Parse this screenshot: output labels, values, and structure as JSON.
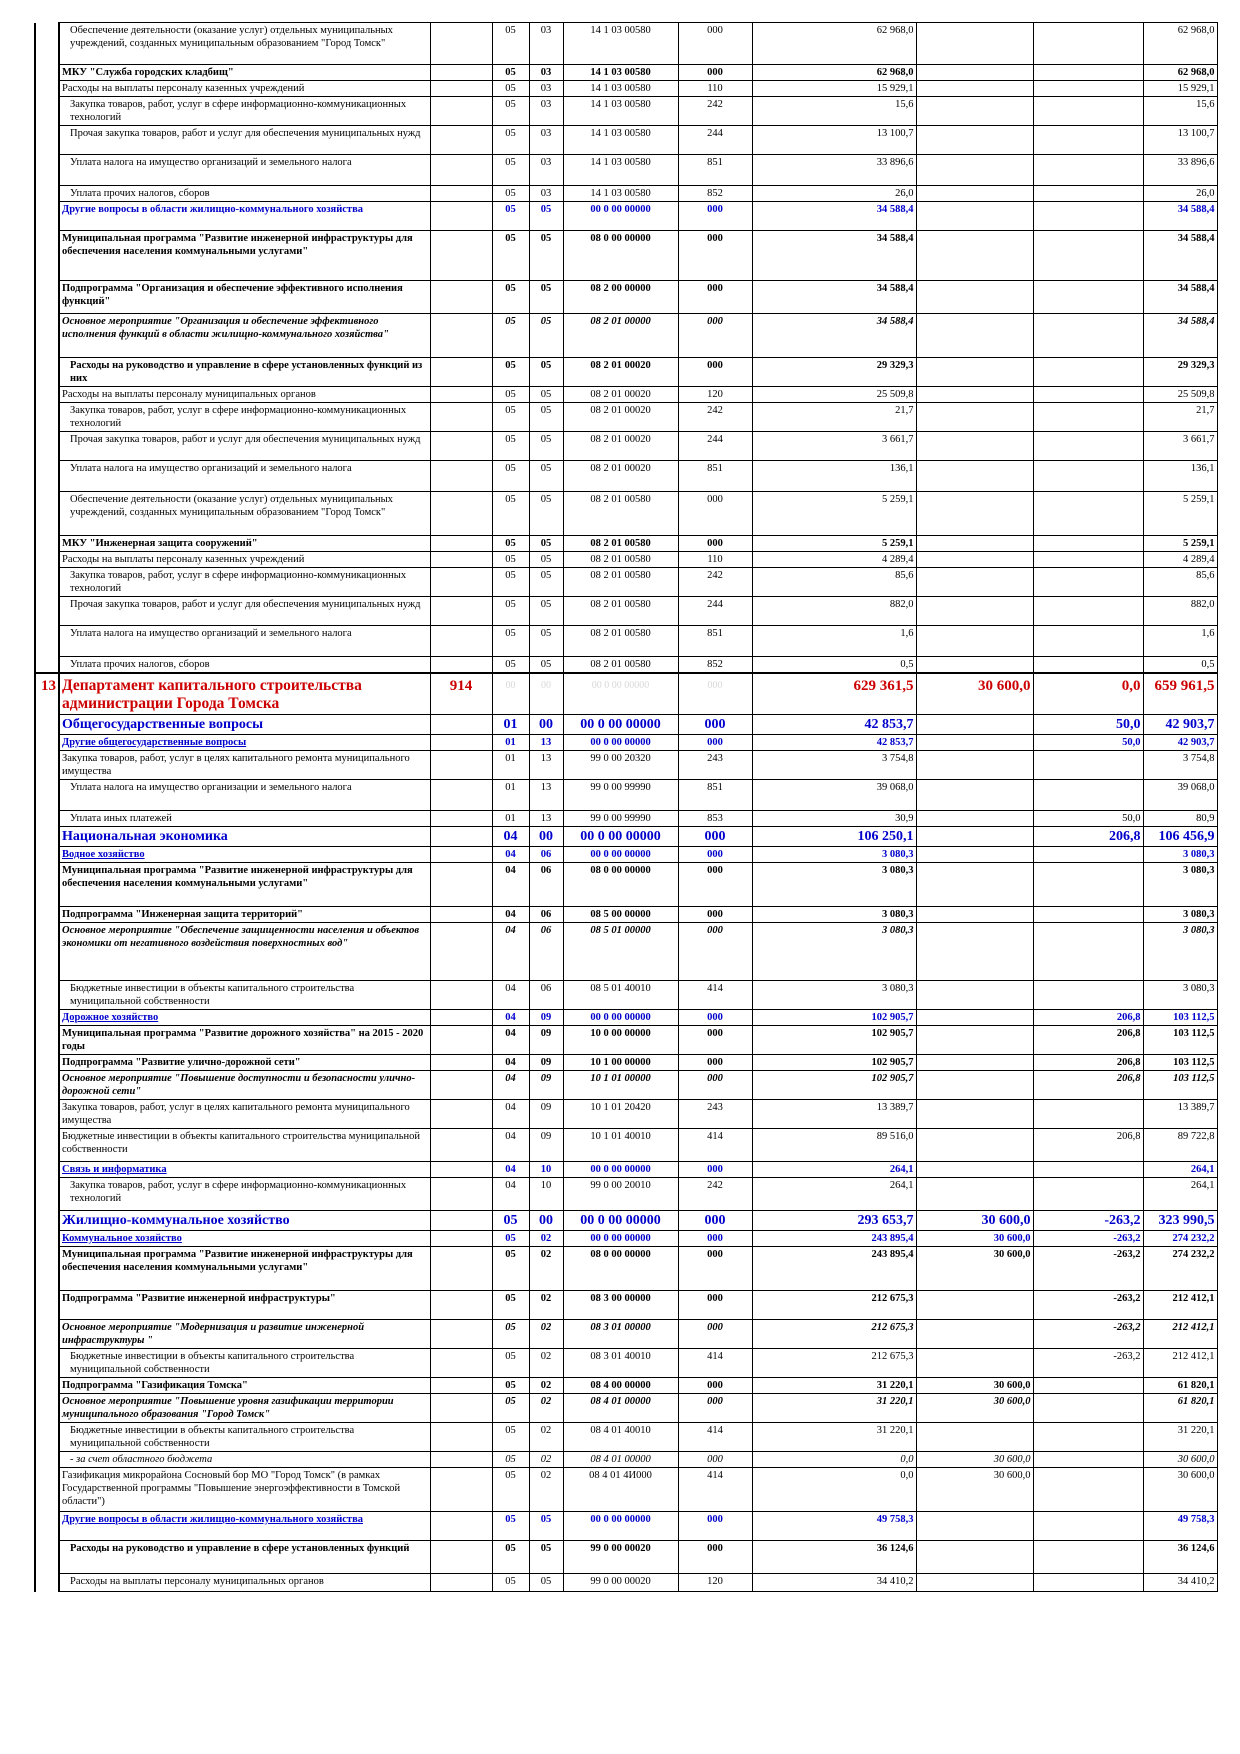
{
  "rows": [
    {
      "name": "Обеспечение деятельности (оказание услуг) отдельных муниципальных учреждений, созданных муниципальным образованием \"Город Томск\"",
      "rz": "05",
      "pr": "03",
      "csr": "14 1 03 00580",
      "vr": "000",
      "s1": "62 968,0",
      "s2": "",
      "s3": "",
      "s4": "62 968,0",
      "h": 42,
      "cls": "",
      "ind": 1
    },
    {
      "name": "МКУ \"Служба городских кладбищ\"",
      "rz": "05",
      "pr": "03",
      "csr": "14 1 03 00580",
      "vr": "000",
      "s1": "62 968,0",
      "s2": "",
      "s3": "",
      "s4": "62 968,0",
      "h": 15,
      "cls": "b",
      "ind": 0
    },
    {
      "name": "Расходы на выплаты персоналу казенных учреждений",
      "rz": "05",
      "pr": "03",
      "csr": "14 1 03 00580",
      "vr": "110",
      "s1": "15 929,1",
      "s2": "",
      "s3": "",
      "s4": "15 929,1",
      "h": 15,
      "cls": "",
      "ind": 0
    },
    {
      "name": "Закупка товаров, работ, услуг в сфере информационно-коммуникационных технологий",
      "rz": "05",
      "pr": "03",
      "csr": "14 1 03 00580",
      "vr": "242",
      "s1": "15,6",
      "s2": "",
      "s3": "",
      "s4": "15,6",
      "h": 29,
      "cls": "",
      "ind": 1
    },
    {
      "name": "Прочая закупка товаров, работ и услуг для обеспечения муниципальных нужд",
      "rz": "05",
      "pr": "03",
      "csr": "14 1 03 00580",
      "vr": "244",
      "s1": "13 100,7",
      "s2": "",
      "s3": "",
      "s4": "13 100,7",
      "h": 29,
      "cls": "",
      "ind": 1
    },
    {
      "name": "Уплата налога на имущество организаций и земельного налога",
      "rz": "05",
      "pr": "03",
      "csr": "14 1 03 00580",
      "vr": "851",
      "s1": "33 896,6",
      "s2": "",
      "s3": "",
      "s4": "33 896,6",
      "h": 31,
      "cls": "",
      "ind": 1
    },
    {
      "name": "Уплата прочих налогов, сборов",
      "rz": "05",
      "pr": "03",
      "csr": "14 1 03 00580",
      "vr": "852",
      "s1": "26,0",
      "s2": "",
      "s3": "",
      "s4": "26,0",
      "h": 15,
      "cls": "",
      "ind": 1
    },
    {
      "name": "Другие вопросы в области жилищно-коммунального хозяйства",
      "rz": "05",
      "pr": "05",
      "csr": "00 0 00 00000",
      "vr": "000",
      "s1": "34 588,4",
      "s2": "",
      "s3": "",
      "s4": "34 588,4",
      "h": 29,
      "cls": "blue",
      "ind": 0
    },
    {
      "name": "Муниципальная программа \"Развитие инженерной инфраструктуры для обеспечения населения коммунальными услугами\"",
      "rz": "05",
      "pr": "05",
      "csr": "08 0 00 00000",
      "vr": "000",
      "s1": "34 588,4",
      "s2": "",
      "s3": "",
      "s4": "34 588,4",
      "h": 50,
      "cls": "b",
      "ind": 0
    },
    {
      "name": "Подпрограмма \"Организация и обеспечение эффективного исполнения функций\"",
      "rz": "05",
      "pr": "05",
      "csr": "08 2 00 00000",
      "vr": "000",
      "s1": "34 588,4",
      "s2": "",
      "s3": "",
      "s4": "34 588,4",
      "h": 33,
      "cls": "b",
      "ind": 0
    },
    {
      "name": "Основное мероприятие \"Организация и обеспечение эффективного исполнения функций в области жилищно-коммунального хозяйства\"",
      "rz": "05",
      "pr": "05",
      "csr": "08 2 01 00000",
      "vr": "000",
      "s1": "34 588,4",
      "s2": "",
      "s3": "",
      "s4": "34 588,4",
      "h": 44,
      "cls": "bi",
      "ind": 0
    },
    {
      "name": "Расходы на руководство и управление в сфере установленных функций из них",
      "rz": "05",
      "pr": "05",
      "csr": "08 2 01 00020",
      "vr": "000",
      "s1": "29 329,3",
      "s2": "",
      "s3": "",
      "s4": "29 329,3",
      "h": 29,
      "cls": "b",
      "ind": 1
    },
    {
      "name": "Расходы на выплаты персоналу муниципальных органов",
      "rz": "05",
      "pr": "05",
      "csr": "08 2 01 00020",
      "vr": "120",
      "s1": "25 509,8",
      "s2": "",
      "s3": "",
      "s4": "25 509,8",
      "h": 15,
      "cls": "",
      "ind": 0
    },
    {
      "name": "Закупка товаров, работ, услуг в сфере информационно-коммуникационных технологий",
      "rz": "05",
      "pr": "05",
      "csr": "08 2 01 00020",
      "vr": "242",
      "s1": "21,7",
      "s2": "",
      "s3": "",
      "s4": "21,7",
      "h": 29,
      "cls": "",
      "ind": 1
    },
    {
      "name": "Прочая закупка товаров, работ и услуг для обеспечения муниципальных нужд",
      "rz": "05",
      "pr": "05",
      "csr": "08 2 01 00020",
      "vr": "244",
      "s1": "3 661,7",
      "s2": "",
      "s3": "",
      "s4": "3 661,7",
      "h": 29,
      "cls": "",
      "ind": 1
    },
    {
      "name": "Уплата налога на имущество организаций и земельного налога",
      "rz": "05",
      "pr": "05",
      "csr": "08 2 01 00020",
      "vr": "851",
      "s1": "136,1",
      "s2": "",
      "s3": "",
      "s4": "136,1",
      "h": 31,
      "cls": "",
      "ind": 1
    },
    {
      "name": "Обеспечение деятельности (оказание услуг) отдельных муниципальных учреждений, созданных муниципальным образованием \"Город Томск\"",
      "rz": "05",
      "pr": "05",
      "csr": "08 2 01 00580",
      "vr": "000",
      "s1": "5 259,1",
      "s2": "",
      "s3": "",
      "s4": "5 259,1",
      "h": 44,
      "cls": "",
      "ind": 1
    },
    {
      "name": "МКУ \"Инженерная защита сооружений\"",
      "rz": "05",
      "pr": "05",
      "csr": "08 2 01 00580",
      "vr": "000",
      "s1": "5 259,1",
      "s2": "",
      "s3": "",
      "s4": "5 259,1",
      "h": 15,
      "cls": "b",
      "ind": 0
    },
    {
      "name": "Расходы на выплаты персоналу казенных учреждений",
      "rz": "05",
      "pr": "05",
      "csr": "08 2 01 00580",
      "vr": "110",
      "s1": "4 289,4",
      "s2": "",
      "s3": "",
      "s4": "4 289,4",
      "h": 15,
      "cls": "",
      "ind": 0
    },
    {
      "name": "Закупка товаров, работ, услуг в сфере информационно-коммуникационных технологий",
      "rz": "05",
      "pr": "05",
      "csr": "08 2 01 00580",
      "vr": "242",
      "s1": "85,6",
      "s2": "",
      "s3": "",
      "s4": "85,6",
      "h": 29,
      "cls": "",
      "ind": 1
    },
    {
      "name": "Прочая закупка товаров, работ и услуг для обеспечения муниципальных нужд",
      "rz": "05",
      "pr": "05",
      "csr": "08 2 01 00580",
      "vr": "244",
      "s1": "882,0",
      "s2": "",
      "s3": "",
      "s4": "882,0",
      "h": 29,
      "cls": "",
      "ind": 1
    },
    {
      "name": "Уплата налога на имущество организаций и земельного налога",
      "rz": "05",
      "pr": "05",
      "csr": "08 2 01 00580",
      "vr": "851",
      "s1": "1,6",
      "s2": "",
      "s3": "",
      "s4": "1,6",
      "h": 31,
      "cls": "",
      "ind": 1
    },
    {
      "name": "Уплата прочих налогов, сборов",
      "rz": "05",
      "pr": "05",
      "csr": "08 2 01 00580",
      "vr": "852",
      "s1": "0,5",
      "s2": "",
      "s3": "",
      "s4": "0,5",
      "h": 15,
      "cls": "",
      "ind": 1
    },
    {
      "num": "13",
      "name": "Департамент капитального строительства администрации Города Томска",
      "code": "914",
      "rz": "00",
      "pr": "00",
      "csr": "00 0 00 00000",
      "vr": "000",
      "s1": "629 361,5",
      "s2": "30 600,0",
      "s3": "0,0",
      "s4": "659 961,5",
      "h": 38,
      "cls": "dept sep",
      "ind": 0
    },
    {
      "name": "Общегосударственные вопросы",
      "rz": "01",
      "pr": "00",
      "csr": "00 0 00 00000",
      "vr": "000",
      "s1": "42 853,7",
      "s2": "",
      "s3": "50,0",
      "s4": "42 903,7",
      "h": 18,
      "cls": "sec",
      "ind": 0
    },
    {
      "name": "Другие общегосударственные вопросы",
      "rz": "01",
      "pr": "13",
      "csr": "00 0 00 00000",
      "vr": "000",
      "s1": "42 853,7",
      "s2": "",
      "s3": "50,0",
      "s4": "42 903,7",
      "h": 15,
      "cls": "blue ul",
      "ind": 0
    },
    {
      "name": "Закупка товаров, работ, услуг в целях капитального ремонта муниципального имущества",
      "rz": "01",
      "pr": "13",
      "csr": "99 0 00 20320",
      "vr": "243",
      "s1": "3 754,8",
      "s2": "",
      "s3": "",
      "s4": "3 754,8",
      "h": 29,
      "cls": "",
      "ind": 0
    },
    {
      "name": "Уплата налога на имущество организации и земельного налога",
      "rz": "01",
      "pr": "13",
      "csr": "99 0 00 99990",
      "vr": "851",
      "s1": "39 068,0",
      "s2": "",
      "s3": "",
      "s4": "39 068,0",
      "h": 31,
      "cls": "",
      "ind": 1
    },
    {
      "name": "Уплата иных платежей",
      "rz": "01",
      "pr": "13",
      "csr": "99 0 00 99990",
      "vr": "853",
      "s1": "30,9",
      "s2": "",
      "s3": "50,0",
      "s4": "80,9",
      "h": 15,
      "cls": "",
      "ind": 1
    },
    {
      "name": "Национальная экономика",
      "rz": "04",
      "pr": "00",
      "csr": "00 0 00 00000",
      "vr": "000",
      "s1": "106 250,1",
      "s2": "",
      "s3": "206,8",
      "s4": "106 456,9",
      "h": 18,
      "cls": "sec",
      "ind": 0
    },
    {
      "name": "Водное хозяйство",
      "rz": "04",
      "pr": "06",
      "csr": "00 0 00 00000",
      "vr": "000",
      "s1": "3 080,3",
      "s2": "",
      "s3": "",
      "s4": "3 080,3",
      "h": 15,
      "cls": "blue ul",
      "ind": 0
    },
    {
      "name": "Муниципальная программа \"Развитие инженерной инфраструктуры для обеспечения населения коммунальными услугами\"",
      "rz": "04",
      "pr": "06",
      "csr": "08 0 00 00000",
      "vr": "000",
      "s1": "3 080,3",
      "s2": "",
      "s3": "",
      "s4": "3 080,3",
      "h": 44,
      "cls": "b",
      "ind": 0
    },
    {
      "name": "Подпрограмма \"Инженерная защита территорий\"",
      "rz": "04",
      "pr": "06",
      "csr": "08 5 00 00000",
      "vr": "000",
      "s1": "3 080,3",
      "s2": "",
      "s3": "",
      "s4": "3 080,3",
      "h": 15,
      "cls": "b",
      "ind": 0
    },
    {
      "name": "Основное мероприятие \"Обеспечение защищенности населения и объектов экономики от негативного воздействия поверхностных вод\"",
      "rz": "04",
      "pr": "06",
      "csr": "08 5 01 00000",
      "vr": "000",
      "s1": "3 080,3",
      "s2": "",
      "s3": "",
      "s4": "3 080,3",
      "h": 58,
      "cls": "bi",
      "ind": 0
    },
    {
      "name": "Бюджетные инвестиции в объекты капитального строительства муниципальной собственности",
      "rz": "04",
      "pr": "06",
      "csr": "08 5 01 40010",
      "vr": "414",
      "s1": "3 080,3",
      "s2": "",
      "s3": "",
      "s4": "3 080,3",
      "h": 29,
      "cls": "",
      "ind": 1
    },
    {
      "name": "Дорожное хозяйство",
      "rz": "04",
      "pr": "09",
      "csr": "00 0 00 00000",
      "vr": "000",
      "s1": "102 905,7",
      "s2": "",
      "s3": "206,8",
      "s4": "103 112,5",
      "h": 15,
      "cls": "blue ul",
      "ind": 0
    },
    {
      "name": "Муниципальная программа \"Развитие дорожного хозяйства\" на 2015 - 2020 годы",
      "rz": "04",
      "pr": "09",
      "csr": "10 0 00 00000",
      "vr": "000",
      "s1": "102 905,7",
      "s2": "",
      "s3": "206,8",
      "s4": "103 112,5",
      "h": 29,
      "cls": "b",
      "ind": 0
    },
    {
      "name": "Подпрограмма \"Развитие улично-дорожной сети\"",
      "rz": "04",
      "pr": "09",
      "csr": "10 1 00 00000",
      "vr": "000",
      "s1": "102 905,7",
      "s2": "",
      "s3": "206,8",
      "s4": "103 112,5",
      "h": 15,
      "cls": "b",
      "ind": 0
    },
    {
      "name": "Основное мероприятие \"Повышение доступности и безопасности улично-дорожной сети\"",
      "rz": "04",
      "pr": "09",
      "csr": "10 1 01 00000",
      "vr": "000",
      "s1": "102 905,7",
      "s2": "",
      "s3": "206,8",
      "s4": "103 112,5",
      "h": 29,
      "cls": "bi",
      "ind": 0
    },
    {
      "name": "Закупка товаров, работ, услуг в целях капитального ремонта муниципального имущества",
      "rz": "04",
      "pr": "09",
      "csr": "10 1 01 20420",
      "vr": "243",
      "s1": "13 389,7",
      "s2": "",
      "s3": "",
      "s4": "13 389,7",
      "h": 29,
      "cls": "",
      "ind": 0
    },
    {
      "name": "Бюджетные инвестиции в объекты капитального строительства муниципальной собственности",
      "rz": "04",
      "pr": "09",
      "csr": "10 1 01 40010",
      "vr": "414",
      "s1": "89 516,0",
      "s2": "",
      "s3": "206,8",
      "s4": "89 722,8",
      "h": 33,
      "cls": "",
      "ind": 0
    },
    {
      "name": "Связь и информатика",
      "rz": "04",
      "pr": "10",
      "csr": "00 0 00 00000",
      "vr": "000",
      "s1": "264,1",
      "s2": "",
      "s3": "",
      "s4": "264,1",
      "h": 15,
      "cls": "blue ul",
      "ind": 0
    },
    {
      "name": "Закупка товаров, работ, услуг в сфере информационно-коммуникационных технологий",
      "rz": "04",
      "pr": "10",
      "csr": "99 0 00 20010",
      "vr": "242",
      "s1": "264,1",
      "s2": "",
      "s3": "",
      "s4": "264,1",
      "h": 33,
      "cls": "",
      "ind": 1
    },
    {
      "name": "Жилищно-коммунальное хозяйство",
      "rz": "05",
      "pr": "00",
      "csr": "00 0 00 00000",
      "vr": "000",
      "s1": "293 653,7",
      "s2": "30 600,0",
      "s3": "-263,2",
      "s4": "323 990,5",
      "h": 18,
      "cls": "sec",
      "ind": 0
    },
    {
      "name": "Коммунальное хозяйство",
      "rz": "05",
      "pr": "02",
      "csr": "00 0 00 00000",
      "vr": "000",
      "s1": "243 895,4",
      "s2": "30 600,0",
      "s3": "-263,2",
      "s4": "274 232,2",
      "h": 15,
      "cls": "blue ul",
      "ind": 0
    },
    {
      "name": "Муниципальная программа \"Развитие инженерной инфраструктуры для обеспечения населения коммунальными услугами\"",
      "rz": "05",
      "pr": "02",
      "csr": "08 0 00 00000",
      "vr": "000",
      "s1": "243 895,4",
      "s2": "30 600,0",
      "s3": "-263,2",
      "s4": "274 232,2",
      "h": 44,
      "cls": "b",
      "ind": 0
    },
    {
      "name": "Подпрограмма \"Развитие инженерной инфраструктуры\"",
      "rz": "05",
      "pr": "02",
      "csr": "08 3 00 00000",
      "vr": "000",
      "s1": "212 675,3",
      "s2": "",
      "s3": "-263,2",
      "s4": "212 412,1",
      "h": 29,
      "cls": "b",
      "ind": 0
    },
    {
      "name": "Основное мероприятие \"Модернизация и развитие инженерной инфраструктуры \"",
      "rz": "05",
      "pr": "02",
      "csr": "08 3 01 00000",
      "vr": "000",
      "s1": "212 675,3",
      "s2": "",
      "s3": "-263,2",
      "s4": "212 412,1",
      "h": 29,
      "cls": "bi",
      "ind": 0
    },
    {
      "name": "Бюджетные инвестиции в объекты капитального строительства муниципальной собственности",
      "rz": "05",
      "pr": "02",
      "csr": "08 3 01 40010",
      "vr": "414",
      "s1": "212 675,3",
      "s2": "",
      "s3": "-263,2",
      "s4": "212 412,1",
      "h": 29,
      "cls": "",
      "ind": 1
    },
    {
      "name": "Подпрограмма \"Газификация Томска\"",
      "rz": "05",
      "pr": "02",
      "csr": "08 4 00 00000",
      "vr": "000",
      "s1": "31 220,1",
      "s2": "30 600,0",
      "s3": "",
      "s4": "61 820,1",
      "h": 15,
      "cls": "b",
      "ind": 0
    },
    {
      "name": "Основное мероприятие \"Повышение уровня газификации территории муниципального образования \"Город Томск\"",
      "rz": "05",
      "pr": "02",
      "csr": "08 4 01 00000",
      "vr": "000",
      "s1": "31 220,1",
      "s2": "30 600,0",
      "s3": "",
      "s4": "61 820,1",
      "h": 29,
      "cls": "bi",
      "ind": 0
    },
    {
      "name": "Бюджетные инвестиции в объекты капитального строительства муниципальной собственности",
      "rz": "05",
      "pr": "02",
      "csr": "08 4 01 40010",
      "vr": "414",
      "s1": "31 220,1",
      "s2": "",
      "s3": "",
      "s4": "31 220,1",
      "h": 29,
      "cls": "",
      "ind": 1
    },
    {
      "name": "- за счет областного бюджета",
      "rz": "05",
      "pr": "02",
      "csr": "08 4 01 00000",
      "vr": "000",
      "s1": "0,0",
      "s2": "30 600,0",
      "s3": "",
      "s4": "30 600,0",
      "h": 15,
      "cls": "it",
      "ind": 1
    },
    {
      "name": "Газификация микрорайона Сосновый бор МО \"Город Томск\" (в рамках Государственной программы \"Повышение энергоэффективности в Томской области\")",
      "rz": "05",
      "pr": "02",
      "csr": "08 4 01 4И000",
      "vr": "414",
      "s1": "0,0",
      "s2": "30 600,0",
      "s3": "",
      "s4": "30 600,0",
      "h": 44,
      "cls": "",
      "ind": 0
    },
    {
      "name": "Другие вопросы в области жилищно-коммунального хозяйства",
      "rz": "05",
      "pr": "05",
      "csr": "00 0 00 00000",
      "vr": "000",
      "s1": "49 758,3",
      "s2": "",
      "s3": "",
      "s4": "49 758,3",
      "h": 29,
      "cls": "blue ul",
      "ind": 0
    },
    {
      "name": "Расходы на руководство и управление в сфере установленных функций",
      "rz": "05",
      "pr": "05",
      "csr": "99 0 00 00020",
      "vr": "000",
      "s1": "36 124,6",
      "s2": "",
      "s3": "",
      "s4": "36 124,6",
      "h": 33,
      "cls": "b",
      "ind": 1
    },
    {
      "name": "Расходы на выплаты персоналу муниципальных органов",
      "rz": "05",
      "pr": "05",
      "csr": "99 0 00 00020",
      "vr": "120",
      "s1": "34 410,2",
      "s2": "",
      "s3": "",
      "s4": "34 410,2",
      "h": 18,
      "cls": "",
      "ind": 1
    }
  ]
}
